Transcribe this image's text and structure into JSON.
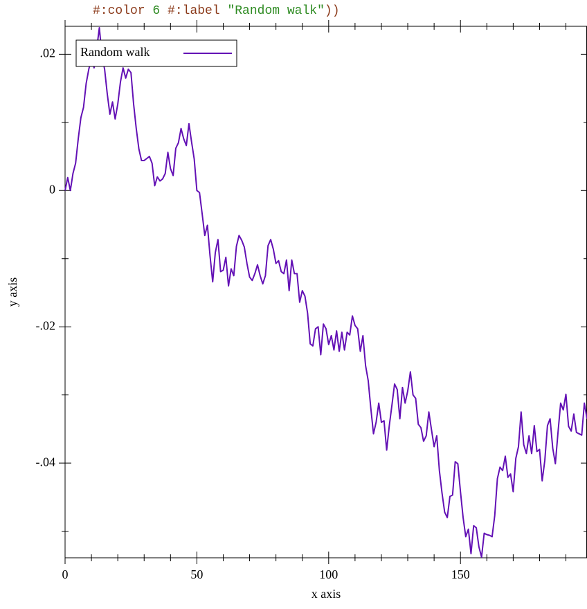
{
  "code_line": [
    {
      "text": "#:color ",
      "color": "#8b3a1a"
    },
    {
      "text": "6",
      "color": "#2e8b22"
    },
    {
      "text": " #:label ",
      "color": "#8b3a1a"
    },
    {
      "text": "\"Random walk\"",
      "color": "#2e8b22"
    },
    {
      "text": "))",
      "color": "#8b3a1a"
    }
  ],
  "chart_data": {
    "type": "line",
    "x_label": "x axis",
    "y_label": "y axis",
    "xlim": [
      0,
      198
    ],
    "ylim": [
      -0.0539,
      0.0241
    ],
    "xticks": [
      0,
      50,
      100,
      150
    ],
    "xminorticks": [
      10,
      20,
      30,
      40,
      60,
      70,
      80,
      90,
      110,
      120,
      130,
      140,
      160,
      170,
      180,
      190
    ],
    "yticks": [
      {
        "value": 0.02,
        "label": ".02"
      },
      0,
      {
        "value": -0.02,
        "label": "-.02"
      },
      {
        "value": -0.04,
        "label": "-.04"
      }
    ],
    "yminorticks": [
      0.01,
      -0.01,
      -0.03,
      -0.05
    ],
    "legend": "top-left",
    "x": [
      0,
      1,
      2,
      3,
      4,
      5,
      6,
      7,
      8,
      9,
      10,
      11,
      12,
      13,
      14,
      15,
      16,
      17,
      18,
      19,
      20,
      21,
      22,
      23,
      24,
      25,
      26,
      27,
      28,
      29,
      30,
      31,
      32,
      33,
      34,
      35,
      36,
      37,
      38,
      39,
      40,
      41,
      42,
      43,
      44,
      45,
      46,
      47,
      48,
      49,
      50,
      51,
      52,
      53,
      54,
      55,
      56,
      57,
      58,
      59,
      60,
      61,
      62,
      63,
      64,
      65,
      66,
      67,
      68,
      69,
      70,
      71,
      72,
      73,
      74,
      75,
      76,
      77,
      78,
      79,
      80,
      81,
      82,
      83,
      84,
      85,
      86,
      87,
      88,
      89,
      90,
      91,
      92,
      93,
      94,
      95,
      96,
      97,
      98,
      99,
      100,
      101,
      102,
      103,
      104,
      105,
      106,
      107,
      108,
      109,
      110,
      111,
      112,
      113,
      114,
      115,
      116,
      117,
      118,
      119,
      120,
      121,
      122,
      123,
      124,
      125,
      126,
      127,
      128,
      129,
      130,
      131,
      132,
      133,
      134,
      135,
      136,
      137,
      138,
      139,
      140,
      141,
      142,
      143,
      144,
      145,
      146,
      147,
      148,
      149,
      150,
      151,
      152,
      153,
      154,
      155,
      156,
      157,
      158,
      159,
      160,
      161,
      162,
      163,
      164,
      165,
      166,
      167,
      168,
      169,
      170,
      171,
      172,
      173,
      174,
      175,
      176,
      177,
      178,
      179,
      180,
      181,
      182,
      183,
      184,
      185,
      186,
      187,
      188,
      189,
      190,
      191,
      192,
      193,
      194,
      195,
      196,
      197,
      198
    ],
    "series": [
      {
        "name": "Random walk",
        "color": "#6311b5",
        "values": [
          0,
          0.0019,
          0,
          0.0025,
          0.004,
          0.0076,
          0.0107,
          0.0122,
          0.0157,
          0.0178,
          0.0193,
          0.018,
          0.0208,
          0.0239,
          0.0198,
          0.0178,
          0.0142,
          0.0112,
          0.013,
          0.0105,
          0.0127,
          0.0159,
          0.018,
          0.0165,
          0.0178,
          0.0173,
          0.0127,
          0.0091,
          0.0061,
          0.0044,
          0.0044,
          0.0047,
          0.005,
          0.004,
          0.0007,
          0.002,
          0.0014,
          0.0017,
          0.0025,
          0.0056,
          0.0032,
          0.0022,
          0.0062,
          0.007,
          0.0091,
          0.0076,
          0.0066,
          0.0098,
          0.0071,
          0.0046,
          0,
          -0.0003,
          -0.0034,
          -0.0066,
          -0.0051,
          -0.0096,
          -0.0134,
          -0.0091,
          -0.0072,
          -0.0119,
          -0.0117,
          -0.0098,
          -0.014,
          -0.0115,
          -0.0125,
          -0.0082,
          -0.0066,
          -0.0073,
          -0.0083,
          -0.0107,
          -0.0127,
          -0.0132,
          -0.0122,
          -0.0109,
          -0.0125,
          -0.0137,
          -0.0125,
          -0.0081,
          -0.0072,
          -0.0086,
          -0.0107,
          -0.0103,
          -0.0119,
          -0.0122,
          -0.0102,
          -0.0147,
          -0.0102,
          -0.0122,
          -0.0122,
          -0.0164,
          -0.0147,
          -0.0155,
          -0.018,
          -0.0225,
          -0.0228,
          -0.0203,
          -0.02,
          -0.0241,
          -0.0196,
          -0.0203,
          -0.0226,
          -0.0213,
          -0.0234,
          -0.0206,
          -0.0236,
          -0.0208,
          -0.0234,
          -0.0208,
          -0.0212,
          -0.0184,
          -0.0198,
          -0.0203,
          -0.0236,
          -0.0213,
          -0.0257,
          -0.0279,
          -0.032,
          -0.0357,
          -0.034,
          -0.0312,
          -0.034,
          -0.0338,
          -0.0381,
          -0.0345,
          -0.0315,
          -0.0284,
          -0.0292,
          -0.0335,
          -0.0289,
          -0.0312,
          -0.0294,
          -0.0266,
          -0.03,
          -0.0305,
          -0.0343,
          -0.0348,
          -0.0368,
          -0.036,
          -0.0325,
          -0.0351,
          -0.0376,
          -0.036,
          -0.0411,
          -0.0444,
          -0.0472,
          -0.048,
          -0.0449,
          -0.0447,
          -0.0398,
          -0.0401,
          -0.0442,
          -0.048,
          -0.0508,
          -0.0497,
          -0.0533,
          -0.0492,
          -0.0495,
          -0.0523,
          -0.0538,
          -0.0503,
          -0.0505,
          -0.0506,
          -0.0508,
          -0.0477,
          -0.0423,
          -0.0406,
          -0.0411,
          -0.039,
          -0.0421,
          -0.0416,
          -0.0442,
          -0.0393,
          -0.0376,
          -0.0325,
          -0.0373,
          -0.0386,
          -0.036,
          -0.0386,
          -0.0345,
          -0.0383,
          -0.038,
          -0.0426,
          -0.0396,
          -0.0345,
          -0.0335,
          -0.0378,
          -0.0401,
          -0.0355,
          -0.0312,
          -0.0322,
          -0.0299,
          -0.0346,
          -0.0353,
          -0.0328,
          -0.0355,
          -0.0357,
          -0.0359,
          -0.0312,
          -0.0335
        ]
      }
    ]
  }
}
